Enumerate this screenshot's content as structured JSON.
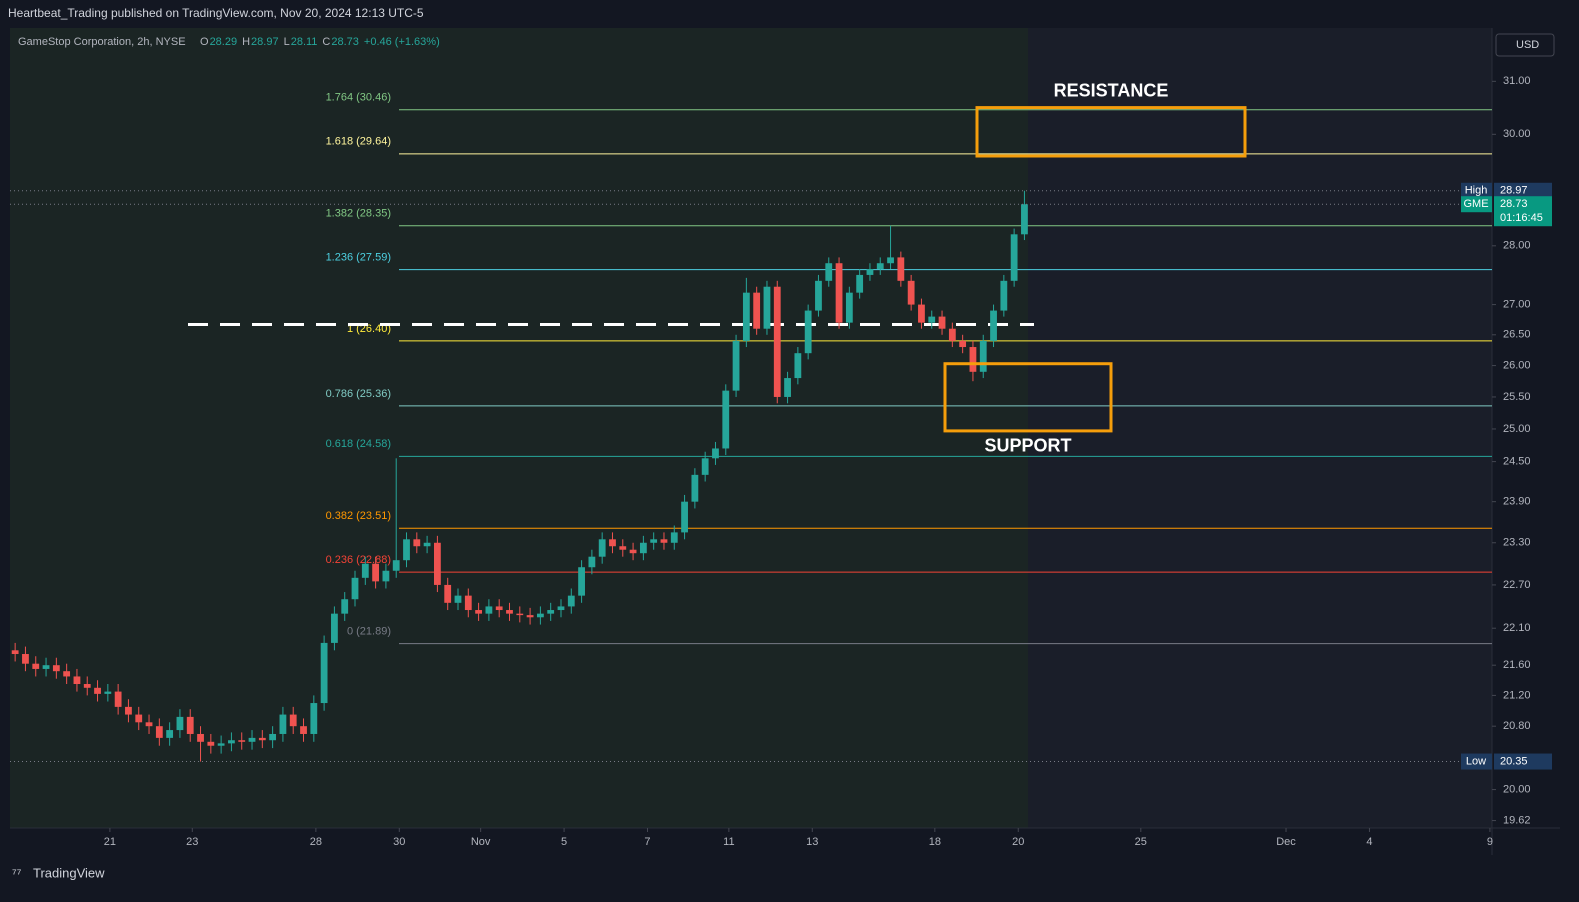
{
  "header": {
    "published": "Heartbeat_Trading published on TradingView.com, Nov 20, 2024 12:13 UTC-5",
    "symbol": "GameStop Corporation, 2h, NYSE",
    "ohlc": [
      {
        "key": "O",
        "value": "28.29"
      },
      {
        "key": "H",
        "value": "28.97"
      },
      {
        "key": "L",
        "value": "28.11"
      },
      {
        "key": "C",
        "value": "28.73"
      }
    ],
    "change": "+0.46 (+1.63%)",
    "currency": "USD",
    "brand": "TradingView"
  },
  "chart_data": {
    "type": "candlestick",
    "log_scale": true,
    "up_color": "#26a69a",
    "down_color": "#ef5350",
    "open": [
      21.8,
      21.75,
      21.62,
      21.55,
      21.6,
      21.52,
      21.45,
      21.35,
      21.3,
      21.22,
      21.25,
      21.05,
      20.95,
      20.85,
      20.8,
      20.65,
      20.75,
      20.92,
      20.7,
      20.6,
      20.55,
      20.58,
      20.62,
      20.6,
      20.65,
      20.62,
      20.7,
      20.95,
      20.8,
      20.7,
      21.1,
      21.9,
      22.3,
      22.5,
      22.8,
      23.0,
      22.75,
      22.9,
      23.05,
      23.35,
      23.25,
      23.3,
      22.7,
      22.45,
      22.55,
      22.35,
      22.3,
      22.4,
      22.35,
      22.3,
      22.28,
      22.25,
      22.3,
      22.35,
      22.4,
      22.55,
      22.95,
      23.1,
      23.35,
      23.25,
      23.2,
      23.15,
      23.3,
      23.35,
      23.3,
      23.45,
      23.9,
      24.3,
      24.55,
      24.7,
      25.6,
      26.4,
      27.2,
      26.6,
      27.3,
      25.5,
      25.8,
      26.2,
      26.9,
      27.4,
      27.7,
      26.7,
      27.2,
      27.5,
      27.6,
      27.7,
      27.8,
      27.4,
      27.0,
      26.7,
      26.8,
      26.6,
      26.4,
      26.3,
      25.9,
      26.4,
      26.9,
      27.4,
      28.2
    ],
    "high": [
      21.9,
      21.85,
      21.72,
      21.7,
      21.7,
      21.62,
      21.55,
      21.45,
      21.4,
      21.35,
      21.35,
      21.15,
      21.05,
      20.95,
      20.9,
      20.85,
      21.02,
      21.02,
      20.8,
      20.7,
      20.68,
      20.72,
      20.72,
      20.75,
      20.75,
      20.8,
      21.05,
      21.05,
      20.9,
      21.2,
      22.0,
      22.4,
      22.6,
      22.9,
      23.1,
      23.1,
      23.0,
      24.55,
      23.45,
      23.45,
      23.4,
      23.4,
      22.8,
      22.65,
      22.65,
      22.45,
      22.5,
      22.5,
      22.45,
      22.4,
      22.38,
      22.4,
      22.45,
      22.5,
      22.65,
      23.05,
      23.2,
      23.45,
      23.45,
      23.35,
      23.3,
      23.4,
      23.45,
      23.45,
      23.55,
      24.0,
      24.4,
      24.65,
      24.8,
      25.7,
      26.5,
      27.45,
      27.3,
      27.4,
      27.4,
      25.9,
      26.3,
      27.0,
      27.5,
      27.8,
      27.8,
      27.3,
      27.6,
      27.7,
      27.8,
      28.35,
      27.9,
      27.5,
      27.1,
      26.9,
      26.9,
      26.7,
      26.5,
      26.4,
      26.5,
      27.0,
      27.5,
      28.3,
      28.97
    ],
    "low": [
      21.65,
      21.52,
      21.45,
      21.45,
      21.42,
      21.35,
      21.25,
      21.2,
      21.12,
      21.12,
      20.95,
      20.85,
      20.75,
      20.7,
      20.55,
      20.55,
      20.65,
      20.6,
      20.35,
      20.45,
      20.45,
      20.48,
      20.5,
      20.5,
      20.52,
      20.52,
      20.6,
      20.7,
      20.6,
      20.6,
      21.0,
      21.8,
      22.2,
      22.4,
      22.7,
      22.65,
      22.65,
      22.8,
      22.95,
      23.15,
      23.15,
      22.6,
      22.35,
      22.35,
      22.25,
      22.2,
      22.2,
      22.25,
      22.2,
      22.18,
      22.15,
      22.15,
      22.2,
      22.25,
      22.3,
      22.45,
      22.85,
      23.0,
      23.15,
      23.1,
      23.05,
      23.05,
      23.2,
      23.2,
      23.2,
      23.35,
      23.8,
      24.2,
      24.45,
      24.6,
      25.5,
      26.3,
      26.5,
      26.5,
      25.4,
      25.4,
      25.7,
      26.1,
      26.8,
      27.3,
      26.6,
      26.6,
      27.1,
      27.4,
      27.5,
      27.6,
      27.3,
      26.9,
      26.6,
      26.6,
      26.5,
      26.3,
      26.2,
      25.75,
      25.8,
      26.3,
      26.8,
      27.3,
      28.1
    ],
    "close": [
      21.75,
      21.62,
      21.55,
      21.6,
      21.52,
      21.45,
      21.35,
      21.3,
      21.22,
      21.25,
      21.05,
      20.95,
      20.85,
      20.8,
      20.65,
      20.75,
      20.92,
      20.7,
      20.6,
      20.55,
      20.58,
      20.62,
      20.6,
      20.65,
      20.62,
      20.7,
      20.95,
      20.8,
      20.7,
      21.1,
      21.9,
      22.3,
      22.5,
      22.8,
      23.0,
      22.75,
      22.9,
      23.05,
      23.35,
      23.25,
      23.3,
      22.7,
      22.45,
      22.55,
      22.35,
      22.3,
      22.4,
      22.35,
      22.3,
      22.28,
      22.25,
      22.3,
      22.35,
      22.4,
      22.55,
      22.95,
      23.1,
      23.35,
      23.25,
      23.2,
      23.15,
      23.3,
      23.35,
      23.3,
      23.45,
      23.9,
      24.3,
      24.55,
      24.7,
      25.6,
      26.4,
      27.2,
      26.6,
      27.3,
      25.5,
      25.8,
      26.2,
      26.9,
      27.4,
      27.7,
      26.7,
      27.2,
      27.5,
      27.6,
      27.7,
      27.8,
      27.4,
      27.0,
      26.7,
      26.8,
      26.6,
      26.4,
      26.3,
      25.9,
      26.4,
      26.9,
      27.4,
      28.2,
      28.73
    ],
    "xlim": [
      -0.5,
      143.4
    ],
    "xticks": [
      {
        "value": 9.2,
        "label": "21"
      },
      {
        "value": 17.2,
        "label": "23"
      },
      {
        "value": 29.2,
        "label": "28"
      },
      {
        "value": 37.3,
        "label": "30"
      },
      {
        "value": 45.2,
        "label": "Nov"
      },
      {
        "value": 53.3,
        "label": "5"
      },
      {
        "value": 61.4,
        "label": "7"
      },
      {
        "value": 69.3,
        "label": "11"
      },
      {
        "value": 77.4,
        "label": "13"
      },
      {
        "value": 89.3,
        "label": "18"
      },
      {
        "value": 97.4,
        "label": "20"
      },
      {
        "value": 109.3,
        "label": "25"
      },
      {
        "value": 123.4,
        "label": "Dec"
      },
      {
        "value": 131.5,
        "label": "4"
      },
      {
        "value": 143.2,
        "label": "9"
      }
    ],
    "ylim": [
      19.53,
      32.04
    ],
    "yticks": [
      {
        "value": 31,
        "label": "31.00"
      },
      {
        "value": 30,
        "label": "30.00"
      },
      {
        "value": 28,
        "label": "28.00"
      },
      {
        "value": 27,
        "label": "27.00"
      },
      {
        "value": 26.5,
        "label": "26.50"
      },
      {
        "value": 26,
        "label": "26.00"
      },
      {
        "value": 25.5,
        "label": "25.50"
      },
      {
        "value": 25,
        "label": "25.00"
      },
      {
        "value": 24.5,
        "label": "24.50"
      },
      {
        "value": 23.9,
        "label": "23.90"
      },
      {
        "value": 23.3,
        "label": "23.30"
      },
      {
        "value": 22.7,
        "label": "22.70"
      },
      {
        "value": 22.1,
        "label": "22.10"
      },
      {
        "value": 21.6,
        "label": "21.60"
      },
      {
        "value": 21.2,
        "label": "21.20"
      },
      {
        "value": 20.8,
        "label": "20.80"
      },
      {
        "value": 20,
        "label": "20.00"
      },
      {
        "value": 19.62,
        "label": "19.62"
      }
    ],
    "fib_levels": [
      {
        "label": "1.764 (30.46)",
        "value": 30.46,
        "color": "#81c784"
      },
      {
        "label": "1.618 (29.64)",
        "value": 29.64,
        "color": "#fff59d"
      },
      {
        "label": "1.382 (28.35)",
        "value": 28.35,
        "color": "#81c784"
      },
      {
        "label": "1.236 (27.59)",
        "value": 27.59,
        "color": "#4dd0e1"
      },
      {
        "label": "1 (26.40)",
        "value": 26.4,
        "color": "#ffeb3b"
      },
      {
        "label": "0.786 (25.36)",
        "value": 25.36,
        "color": "#80cbc4"
      },
      {
        "label": "0.618 (24.58)",
        "value": 24.58,
        "color": "#26a69a"
      },
      {
        "label": "0.382 (23.51)",
        "value": 23.51,
        "color": "#ff9800"
      },
      {
        "label": "0.236 (22.88)",
        "value": 22.88,
        "color": "#f44336"
      },
      {
        "label": "0 (21.89)",
        "value": 21.89,
        "color": "#787b86"
      }
    ],
    "dashed_level": 26.67,
    "zones": [
      {
        "label": "RESISTANCE",
        "range": [
          29.6,
          30.5
        ],
        "color": "#f59e0b"
      },
      {
        "label": "SUPPORT",
        "range": [
          24.97,
          26.03
        ],
        "color": "#f59e0b"
      }
    ],
    "price_tags": [
      {
        "label": "High",
        "value": 28.97,
        "color": "#1e3a5f"
      },
      {
        "label": "GME",
        "value": 28.73,
        "color": "#089981",
        "timer": "01:16:45"
      },
      {
        "label": "Low",
        "value": 20.35,
        "color": "#1e3a5f"
      }
    ]
  }
}
